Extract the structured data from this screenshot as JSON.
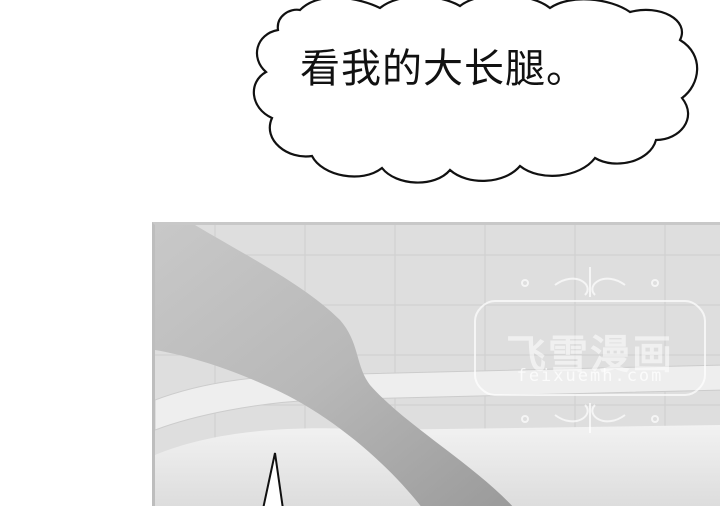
{
  "speech_bubble": {
    "text": "看我的大长腿。"
  },
  "watermark": {
    "title": "飞雪漫画",
    "url": "feixuemh.com"
  }
}
